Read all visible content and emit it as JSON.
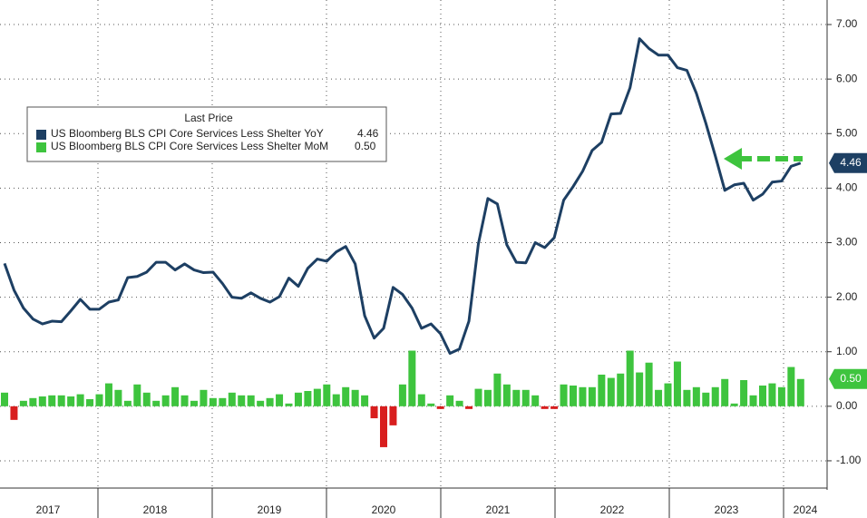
{
  "chart_data": {
    "type": "line-bar",
    "legend_title": "Last Price",
    "xticks": [
      "2017",
      "2018",
      "2019",
      "2020",
      "2021",
      "2022",
      "2023",
      "2024"
    ],
    "series": [
      {
        "name": "US Bloomberg BLS CPI Core Services Less Shelter YoY",
        "type": "line",
        "color": "#1d3f63",
        "last_label": "4.46",
        "values": [
          2.62,
          2.13,
          1.8,
          1.6,
          1.51,
          1.56,
          1.55,
          1.75,
          1.96,
          1.78,
          1.78,
          1.91,
          1.95,
          2.36,
          2.38,
          2.46,
          2.64,
          2.64,
          2.5,
          2.61,
          2.5,
          2.45,
          2.46,
          2.25,
          2.0,
          1.98,
          2.08,
          1.98,
          1.91,
          2.01,
          2.35,
          2.2,
          2.53,
          2.7,
          2.66,
          2.83,
          2.93,
          2.61,
          1.66,
          1.25,
          1.43,
          2.18,
          2.05,
          1.8,
          1.43,
          1.51,
          1.33,
          0.97,
          1.05,
          1.56,
          2.98,
          3.81,
          3.71,
          2.96,
          2.64,
          2.63,
          3.0,
          2.91,
          3.09,
          3.78,
          4.03,
          4.31,
          4.69,
          4.84,
          5.36,
          5.37,
          5.84,
          6.74,
          6.56,
          6.44,
          6.44,
          6.21,
          6.16,
          5.74,
          5.19,
          4.59,
          3.96,
          4.06,
          4.09,
          3.78,
          3.89,
          4.11,
          4.13,
          4.4,
          4.46
        ]
      },
      {
        "name": "US Bloomberg BLS CPI Core Services Less Shelter MoM",
        "type": "bar",
        "color": "#3ec43e",
        "negative_color": "#d81e1e",
        "last_label": "0.50",
        "values": [
          0.25,
          -0.25,
          0.1,
          0.15,
          0.18,
          0.2,
          0.2,
          0.18,
          0.22,
          0.13,
          0.22,
          0.42,
          0.3,
          0.1,
          0.4,
          0.25,
          0.1,
          0.2,
          0.35,
          0.2,
          0.1,
          0.3,
          0.15,
          0.15,
          0.25,
          0.2,
          0.2,
          0.1,
          0.15,
          0.22,
          0.05,
          0.25,
          0.28,
          0.32,
          0.4,
          0.22,
          0.35,
          0.3,
          0.2,
          -0.22,
          -0.75,
          -0.35,
          0.4,
          1.02,
          0.22,
          0.05,
          -0.05,
          0.2,
          0.1,
          -0.05,
          0.32,
          0.3,
          0.6,
          0.4,
          0.3,
          0.3,
          0.2,
          -0.05,
          -0.05,
          0.4,
          0.38,
          0.35,
          0.35,
          0.58,
          0.52,
          0.6,
          1.02,
          0.62,
          0.8,
          0.3,
          0.42,
          0.82,
          0.3,
          0.35,
          0.25,
          0.35,
          0.5,
          0.05,
          0.48,
          0.2,
          0.38,
          0.42,
          0.35,
          0.72,
          0.5
        ]
      }
    ],
    "ylim": [
      -1.5,
      7.45
    ],
    "yticks": [
      {
        "value": -1,
        "label": "-1.00"
      },
      {
        "value": 0,
        "label": "0.00"
      },
      {
        "value": 1,
        "label": "1.00"
      },
      {
        "value": 2,
        "label": "2.00"
      },
      {
        "value": 3,
        "label": "3.00"
      },
      {
        "value": 4,
        "label": "4.00"
      },
      {
        "value": 5,
        "label": "5.00"
      },
      {
        "value": 6,
        "label": "6.00"
      },
      {
        "value": 7,
        "label": "7.00"
      }
    ],
    "grid": true
  }
}
